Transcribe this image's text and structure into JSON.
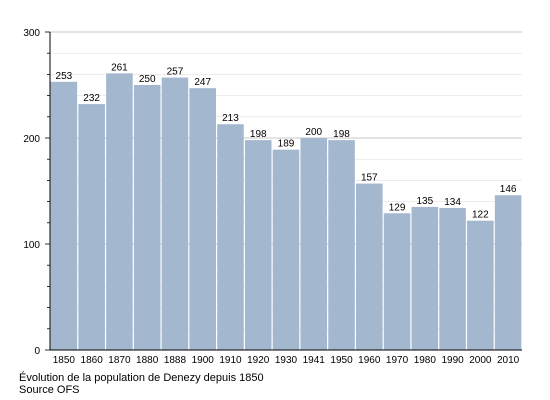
{
  "chart_data": {
    "type": "bar",
    "title": "",
    "xlabel": "",
    "ylabel": "",
    "categories": [
      "1850",
      "1860",
      "1870",
      "1880",
      "1888",
      "1900",
      "1910",
      "1920",
      "1930",
      "1941",
      "1950",
      "1960",
      "1970",
      "1980",
      "1990",
      "2000",
      "2010"
    ],
    "values": [
      253,
      232,
      261,
      250,
      257,
      247,
      213,
      198,
      189,
      200,
      198,
      157,
      129,
      135,
      134,
      122,
      146
    ],
    "ylim": [
      0,
      300
    ],
    "yticks": [
      0,
      100,
      200,
      300
    ],
    "grid": true,
    "bar_color": "#a3b8cf",
    "grid_color": "#d8d8d8"
  },
  "caption": {
    "line1": "Évolution de la population de Denezy depuis 1850",
    "line2": "Source OFS"
  }
}
